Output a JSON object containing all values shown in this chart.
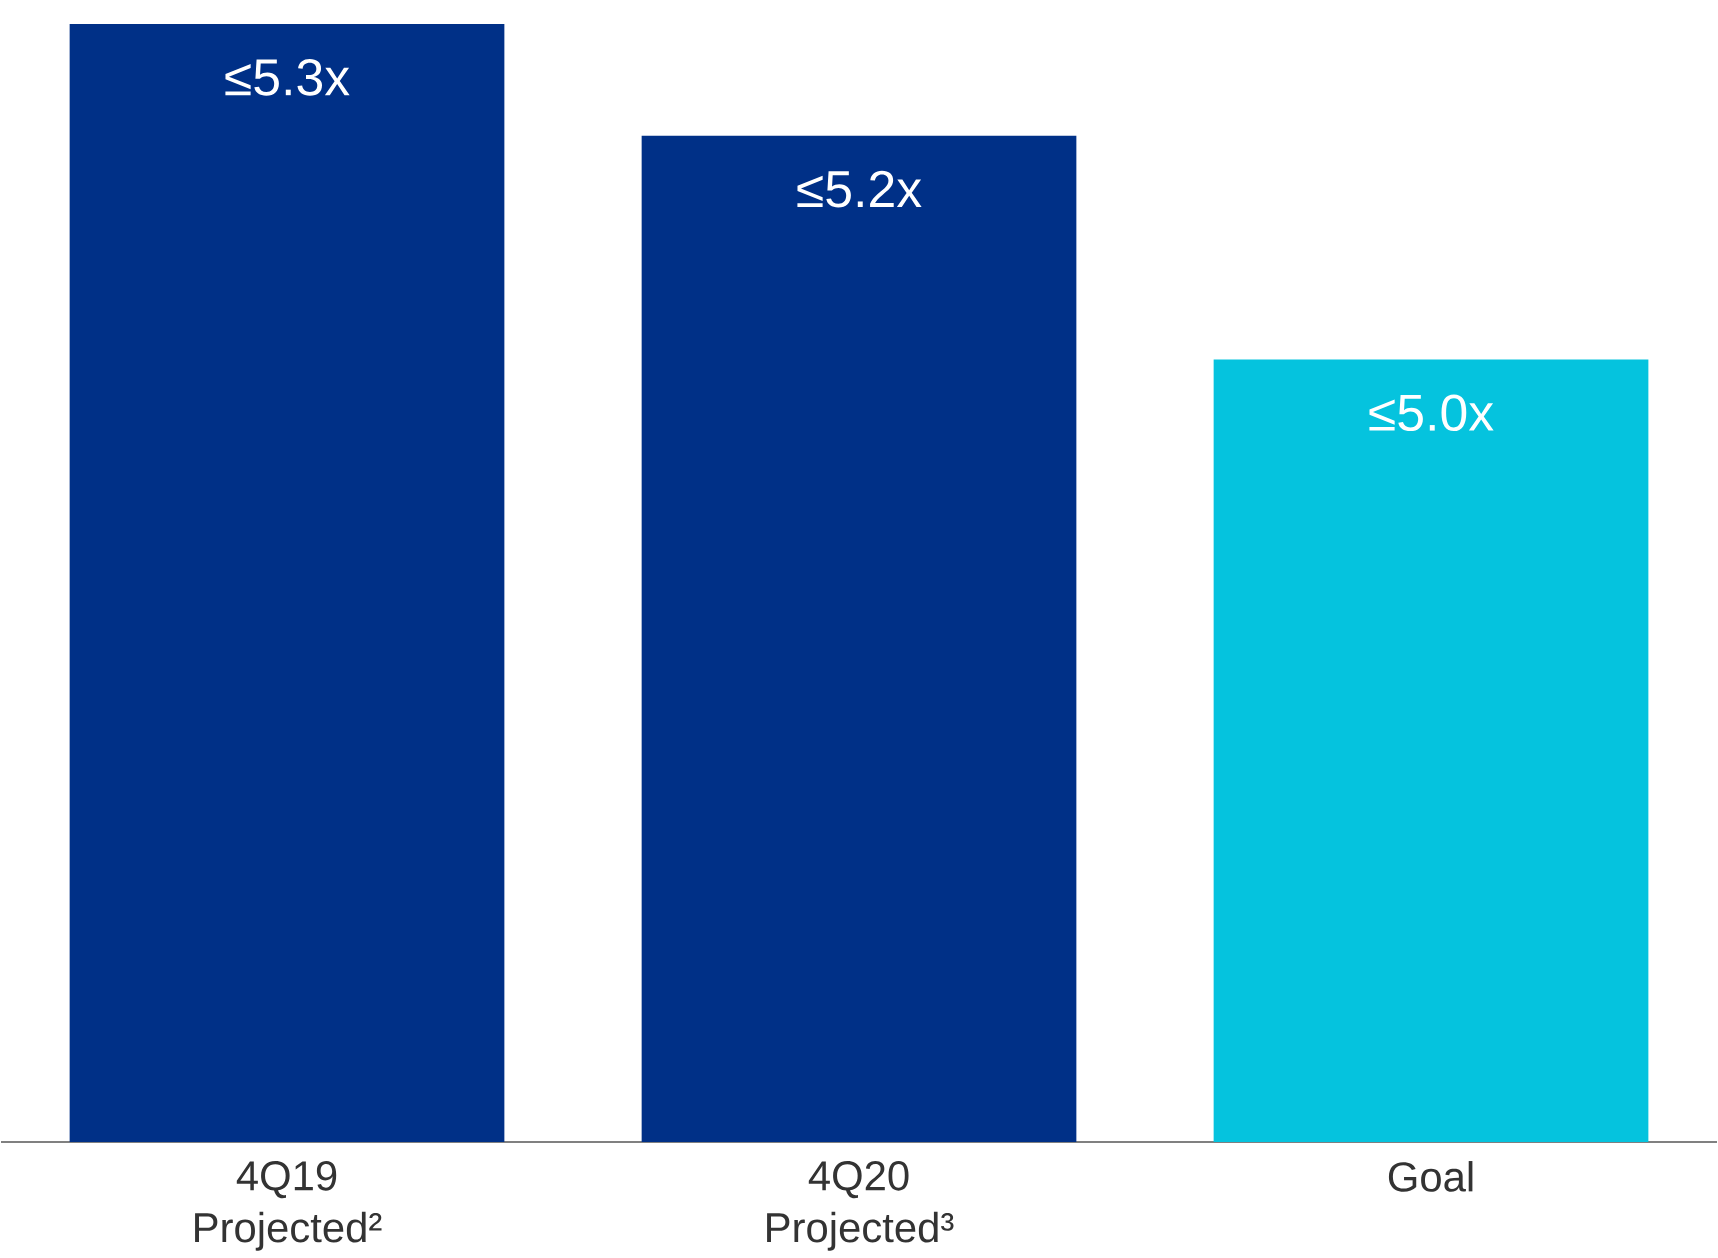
{
  "chart_data": {
    "type": "bar",
    "categories": [
      "4Q19 Projected²",
      "4Q20 Projected³",
      "Goal"
    ],
    "values": [
      5.3,
      5.2,
      5.0
    ],
    "value_labels": [
      "≤5.3x",
      "≤5.2x",
      "≤5.0x"
    ],
    "colors": [
      "#003087",
      "#003087",
      "#05c3de"
    ],
    "ylim": [
      4.3,
      5.3
    ]
  }
}
